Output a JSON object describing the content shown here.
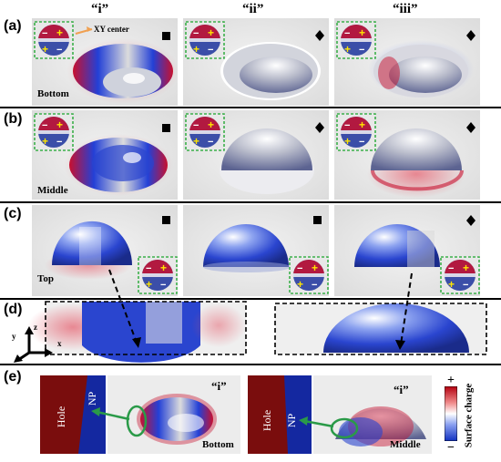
{
  "column_headers": [
    "“i”",
    "“ii”",
    "“iii”"
  ],
  "panels": {
    "a": {
      "label": "(a)",
      "row_label": "Bottom",
      "annotation": "XY center"
    },
    "b": {
      "label": "(b)",
      "row_label": "Middle"
    },
    "c": {
      "label": "(c)",
      "row_label": "Top"
    },
    "d": {
      "label": "(d)",
      "axes": {
        "x": "x",
        "y": "y",
        "z": "z"
      }
    },
    "e": {
      "label": "(e)",
      "left": {
        "hole": "Hole",
        "np": "NP",
        "tag": "“i”",
        "position": "Bottom"
      },
      "right": {
        "hole": "Hole",
        "np": "NP",
        "tag": "“i”",
        "position": "Middle"
      }
    }
  },
  "colorbar": {
    "label": "Surface charge",
    "plus": "+",
    "minus": "−",
    "top_color": "#b3000f",
    "mid_color": "#ffffff",
    "bottom_color": "#1030c0"
  },
  "markers": {
    "a": [
      "square",
      "diamond",
      "diamond"
    ],
    "b": [
      "square",
      "diamond",
      "diamond"
    ],
    "c": [
      "square",
      "square",
      "diamond"
    ]
  },
  "colors": {
    "positive": "#c8102e",
    "negative": "#1a3fd1",
    "inset_border": "#3cb04a",
    "arrow": "#2a9a48",
    "hole": "#7a0d0d",
    "np": "#1428a0"
  }
}
